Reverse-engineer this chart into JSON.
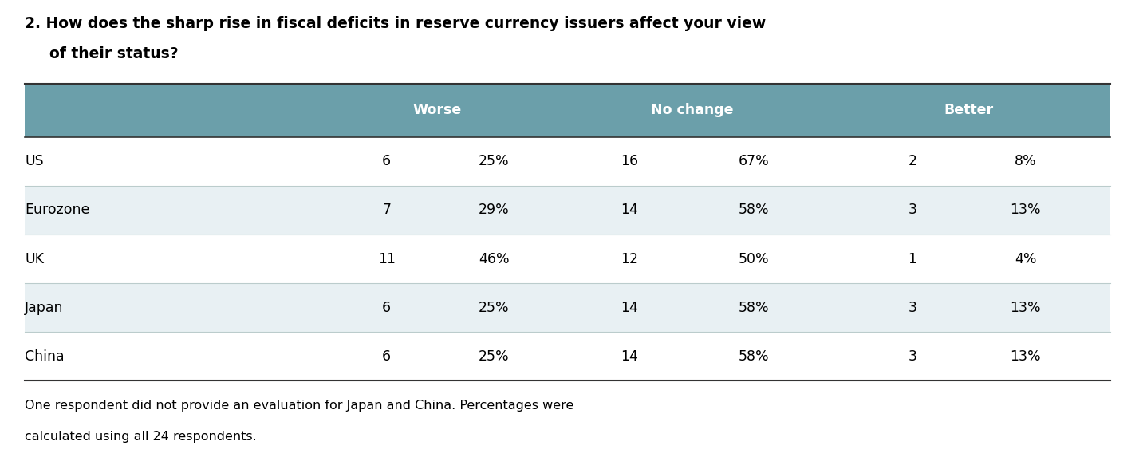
{
  "title_line1": "2. How does the sharp rise in fiscal deficits in reserve currency issuers affect your view",
  "title_line2": "of their status?",
  "header_groups": [
    "Worse",
    "No change",
    "Better"
  ],
  "rows": [
    {
      "label": "US",
      "worse_n": "6",
      "worse_pct": "25%",
      "nochange_n": "16",
      "nochange_pct": "67%",
      "better_n": "2",
      "better_pct": "8%"
    },
    {
      "label": "Eurozone",
      "worse_n": "7",
      "worse_pct": "29%",
      "nochange_n": "14",
      "nochange_pct": "58%",
      "better_n": "3",
      "better_pct": "13%"
    },
    {
      "label": "UK",
      "worse_n": "11",
      "worse_pct": "46%",
      "nochange_n": "12",
      "nochange_pct": "50%",
      "better_n": "1",
      "better_pct": "4%"
    },
    {
      "label": "Japan",
      "worse_n": "6",
      "worse_pct": "25%",
      "nochange_n": "14",
      "nochange_pct": "58%",
      "better_n": "3",
      "better_pct": "13%"
    },
    {
      "label": "China",
      "worse_n": "6",
      "worse_pct": "25%",
      "nochange_n": "14",
      "nochange_pct": "58%",
      "better_n": "3",
      "better_pct": "13%"
    }
  ],
  "footnote_line1": "One respondent did not provide an evaluation for Japan and China. Percentages were",
  "footnote_line2": "calculated using all 24 respondents.",
  "header_bg_color": "#6b9faa",
  "header_text_color": "#ffffff",
  "row_even_bg": "#e8f0f3",
  "row_odd_bg": "#ffffff",
  "border_color": "#333333",
  "row_line_color": "#bbcccc",
  "title_color": "#000000",
  "text_color": "#000000",
  "footnote_color": "#000000"
}
